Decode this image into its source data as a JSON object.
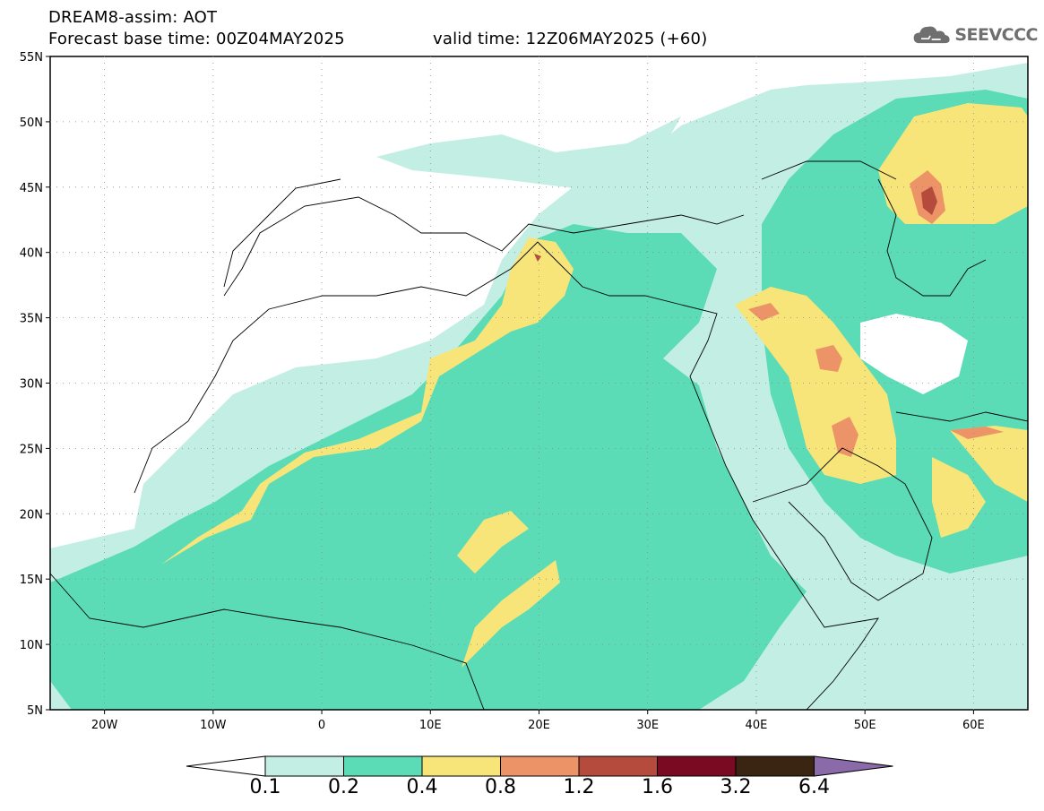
{
  "header": {
    "line1": "DREAM8-assim: AOT",
    "line2": "Forecast base time: 00Z04MAY2025",
    "valid": "valid time: 12Z06MAY2025 (+60)"
  },
  "logo": {
    "text": "SEEVCCC",
    "icon": "cloud-icon"
  },
  "map": {
    "lat_labels": [
      "55N",
      "50N",
      "45N",
      "40N",
      "35N",
      "30N",
      "25N",
      "20N",
      "15N",
      "10N",
      "5N"
    ],
    "lon_labels": [
      "20W",
      "10W",
      "0",
      "10E",
      "20E",
      "30E",
      "40E",
      "50E",
      "60E"
    ],
    "extent": {
      "lon": [
        -25,
        65
      ],
      "lat": [
        5,
        55
      ]
    }
  },
  "colorbar": {
    "labels": [
      "0.1",
      "0.2",
      "0.4",
      "0.8",
      "1.2",
      "1.6",
      "3.2",
      "6.4"
    ],
    "colors": [
      "#ffffff",
      "#c3eee4",
      "#5bdcb6",
      "#f8e57a",
      "#ec9468",
      "#b44b3c",
      "#7a0a22",
      "#3a2412",
      "#8a6aa8"
    ]
  }
}
